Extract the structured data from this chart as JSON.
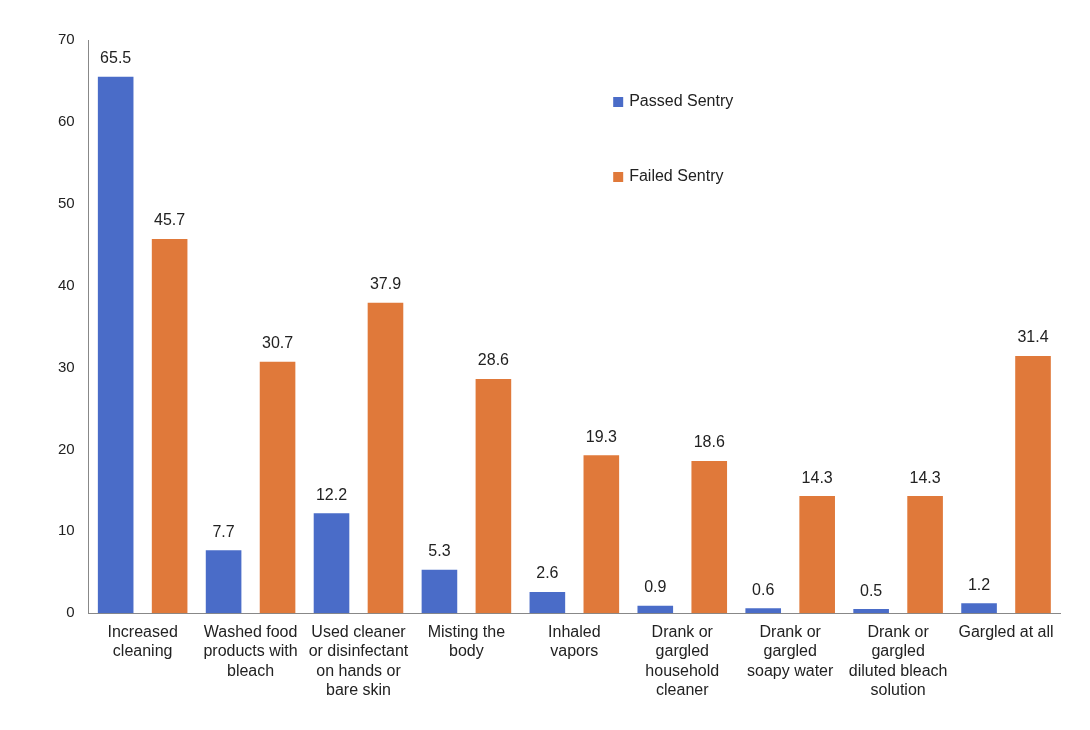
{
  "chart_data": {
    "type": "bar",
    "categories": [
      "Increased cleaning",
      "Washed food products with bleach",
      "Used cleaner or disinfectant on hands or bare skin",
      "Misting the body",
      "Inhaled vapors",
      "Drank or gargled household cleaner",
      "Drank or gargled soapy water",
      "Drank or gargled diluted bleach solution",
      "Gargled at all"
    ],
    "series": [
      {
        "name": "Passed Sentry",
        "color": "#4a6cc8",
        "values": [
          65.5,
          7.7,
          12.2,
          5.3,
          2.6,
          0.9,
          0.6,
          0.5,
          1.2
        ]
      },
      {
        "name": "Failed Sentry",
        "color": "#e0793a",
        "values": [
          45.7,
          30.7,
          37.9,
          28.6,
          19.3,
          18.6,
          14.3,
          14.3,
          31.4
        ]
      }
    ],
    "ylim": [
      0,
      70
    ],
    "yticks": [
      0,
      10,
      20,
      30,
      40,
      50,
      60,
      70
    ],
    "data_labels": true,
    "grid": false,
    "legend": "top"
  }
}
